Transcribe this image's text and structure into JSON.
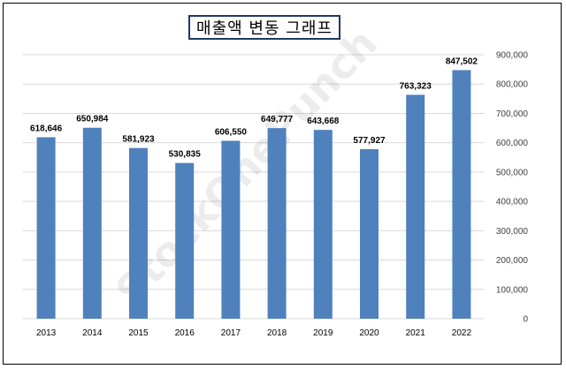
{
  "watermark": "StockOnePunch",
  "chart_data": {
    "type": "bar",
    "title": "매출액 변동 그래프",
    "categories": [
      "2013",
      "2014",
      "2015",
      "2016",
      "2017",
      "2018",
      "2019",
      "2020",
      "2021",
      "2022"
    ],
    "values": [
      618646,
      650984,
      581923,
      530835,
      606550,
      649777,
      643668,
      577927,
      763323,
      847502
    ],
    "data_labels": [
      "618,646",
      "650,984",
      "581,923",
      "530,835",
      "606,550",
      "649,777",
      "643,668",
      "577,927",
      "763,323",
      "847,502"
    ],
    "ylim": [
      0,
      900000
    ],
    "yticks": [
      0,
      100000,
      200000,
      300000,
      400000,
      500000,
      600000,
      700000,
      800000,
      900000
    ],
    "ytick_labels": [
      "0",
      "100,000",
      "200,000",
      "300,000",
      "400,000",
      "500,000",
      "600,000",
      "700,000",
      "800,000",
      "900,000"
    ],
    "y_axis_side": "right",
    "grid": true,
    "bar_color": "#4f81bd",
    "grid_color": "#d9d9d9"
  }
}
